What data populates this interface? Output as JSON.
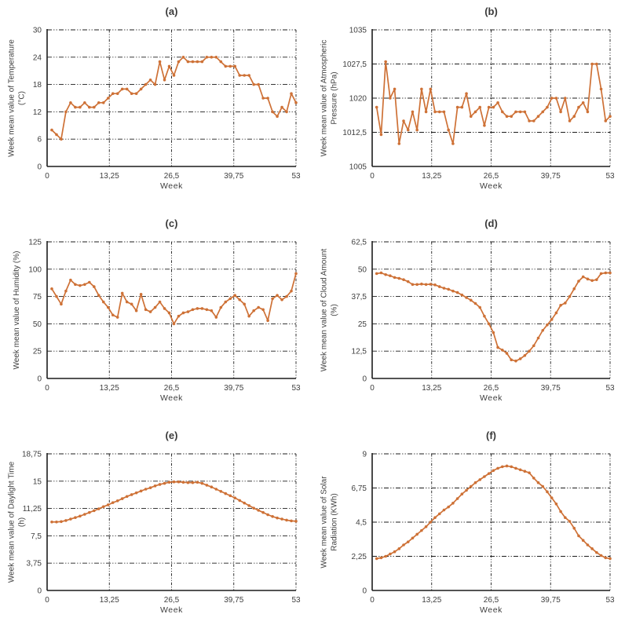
{
  "figure": {
    "line_color": "#ce7136",
    "text_color": "#3f3f3f",
    "grid": "dash-dot",
    "xlim": [
      0,
      53
    ],
    "xticks": [
      "0",
      "13,25",
      "26,5",
      "39,75",
      "53"
    ],
    "xtick_values": [
      0,
      13.25,
      26.5,
      39.75,
      53
    ],
    "x_description": "week number, 1 to 53"
  },
  "chart_data": [
    {
      "type": "line",
      "title": "(a)",
      "ylabel": "Week mean value of Temperature\n(°C)",
      "xlabel": "Week",
      "ylim": [
        0,
        30
      ],
      "yticks": [
        "30",
        "24",
        "18",
        "12",
        "6",
        "0"
      ],
      "ytick_values": [
        30,
        24,
        18,
        12,
        6,
        0
      ],
      "legend": "none",
      "values": [
        8,
        7,
        6,
        12,
        14,
        13,
        13,
        14,
        13,
        13,
        14,
        14,
        15,
        16,
        16,
        17,
        17,
        16,
        16,
        17,
        18,
        19,
        18,
        23,
        19,
        22,
        20,
        23,
        24,
        23,
        23,
        23,
        23,
        24,
        24,
        24,
        23,
        22,
        22,
        22,
        20,
        20,
        20,
        18,
        18,
        15,
        15,
        12,
        11,
        13,
        12,
        16,
        14
      ]
    },
    {
      "type": "line",
      "title": "(b)",
      "ylabel": "Week mean value of Atmospheric\nPressure (hPa)",
      "xlabel": "Week",
      "ylim": [
        1005,
        1035
      ],
      "yticks": [
        "1035",
        "1027,5",
        "1020",
        "1012,5",
        "1005"
      ],
      "ytick_values": [
        1035,
        1027.5,
        1020,
        1012.5,
        1005
      ],
      "legend": "none",
      "values": [
        1018,
        1012,
        1028,
        1020,
        1022,
        1010,
        1015,
        1013,
        1017,
        1013,
        1022,
        1017,
        1022,
        1017,
        1017,
        1017,
        1013,
        1010,
        1018,
        1018,
        1021,
        1016,
        1017,
        1018,
        1014,
        1018,
        1018,
        1019,
        1017,
        1016,
        1016,
        1017,
        1017,
        1017,
        1015,
        1015,
        1016,
        1017,
        1018,
        1020,
        1020,
        1017,
        1020,
        1015,
        1016,
        1018,
        1019,
        1017,
        1027.5,
        1027.5,
        1022,
        1015,
        1016
      ]
    },
    {
      "type": "line",
      "title": "(c)",
      "ylabel": "Week mean value of Humidity (%)",
      "xlabel": "Week",
      "ylim": [
        0,
        125
      ],
      "yticks": [
        "125",
        "100",
        "75",
        "50",
        "25",
        "0"
      ],
      "ytick_values": [
        125,
        100,
        75,
        50,
        25,
        0
      ],
      "legend": "none",
      "values": [
        82,
        75,
        68,
        80,
        90,
        86,
        85,
        86,
        88,
        84,
        76,
        70,
        65,
        58,
        56,
        78,
        70,
        68,
        62,
        77,
        63,
        61,
        65,
        70,
        64,
        60,
        50,
        57,
        60,
        61,
        63,
        64,
        64,
        63,
        62,
        56,
        65,
        70,
        73,
        76,
        72,
        68,
        57,
        62,
        65,
        63,
        53,
        73,
        76,
        72,
        75,
        80,
        96
      ]
    },
    {
      "type": "line",
      "title": "(d)",
      "ylabel": "Week mean value of Cloud Amount\n(%)",
      "xlabel": "Week",
      "ylim": [
        0,
        62.5
      ],
      "yticks": [
        "62,5",
        "50",
        "37,5",
        "25",
        "12,5",
        "0"
      ],
      "ytick_values": [
        62.5,
        50,
        37.5,
        25,
        12.5,
        0
      ],
      "legend": "none",
      "values": [
        48,
        48.3,
        47.5,
        47,
        46.2,
        45.8,
        45.2,
        44.3,
        43,
        43,
        43.2,
        43,
        43.1,
        42.8,
        42,
        41.3,
        40.8,
        40,
        39.3,
        38.2,
        37,
        35.8,
        34.3,
        32.5,
        28.5,
        25,
        21,
        14.2,
        13,
        11.5,
        8.5,
        8,
        9,
        10.5,
        12.5,
        15,
        18.5,
        22,
        24.5,
        27,
        30,
        33.5,
        34.5,
        37.5,
        41,
        44.5,
        46.5,
        45.5,
        44.8,
        45.2,
        48,
        48.3,
        48.3
      ]
    },
    {
      "type": "line",
      "title": "(e)",
      "ylabel": "Week mean value of Daylight Time\n(h)",
      "xlabel": "Week",
      "ylim": [
        0,
        18.75
      ],
      "yticks": [
        "18,75",
        "15",
        "11,25",
        "7,5",
        "3,75",
        "0"
      ],
      "ytick_values": [
        18.75,
        15,
        11.25,
        7.5,
        3.75,
        0
      ],
      "legend": "none",
      "values": [
        9.4,
        9.4,
        9.45,
        9.6,
        9.8,
        10.0,
        10.2,
        10.45,
        10.7,
        10.95,
        11.2,
        11.5,
        11.75,
        12.05,
        12.3,
        12.6,
        12.9,
        13.15,
        13.4,
        13.65,
        13.9,
        14.1,
        14.35,
        14.55,
        14.7,
        14.85,
        14.9,
        14.9,
        14.85,
        14.8,
        14.8,
        14.85,
        14.7,
        14.45,
        14.2,
        13.9,
        13.6,
        13.3,
        13.0,
        12.7,
        12.35,
        12.0,
        11.65,
        11.3,
        11.0,
        10.7,
        10.4,
        10.15,
        9.95,
        9.8,
        9.65,
        9.55,
        9.5
      ]
    },
    {
      "type": "line",
      "title": "(f)",
      "ylabel": "Week mean value of Solar\nRadiation (KWh)",
      "xlabel": "Week",
      "ylim": [
        0,
        9
      ],
      "yticks": [
        "9",
        "6,75",
        "4,5",
        "2,25",
        "0"
      ],
      "ytick_values": [
        9,
        6.75,
        4.5,
        2.25,
        0
      ],
      "legend": "none",
      "values": [
        2.1,
        2.15,
        2.25,
        2.4,
        2.55,
        2.75,
        3.0,
        3.2,
        3.45,
        3.7,
        3.95,
        4.2,
        4.5,
        4.8,
        5.05,
        5.3,
        5.5,
        5.75,
        6.05,
        6.35,
        6.6,
        6.85,
        7.1,
        7.3,
        7.5,
        7.7,
        7.9,
        8.05,
        8.15,
        8.2,
        8.15,
        8.05,
        7.95,
        7.85,
        7.75,
        7.4,
        7.1,
        6.85,
        6.5,
        6.1,
        5.7,
        5.2,
        4.8,
        4.55,
        4.1,
        3.6,
        3.3,
        3.0,
        2.75,
        2.5,
        2.3,
        2.15,
        2.1
      ]
    }
  ]
}
